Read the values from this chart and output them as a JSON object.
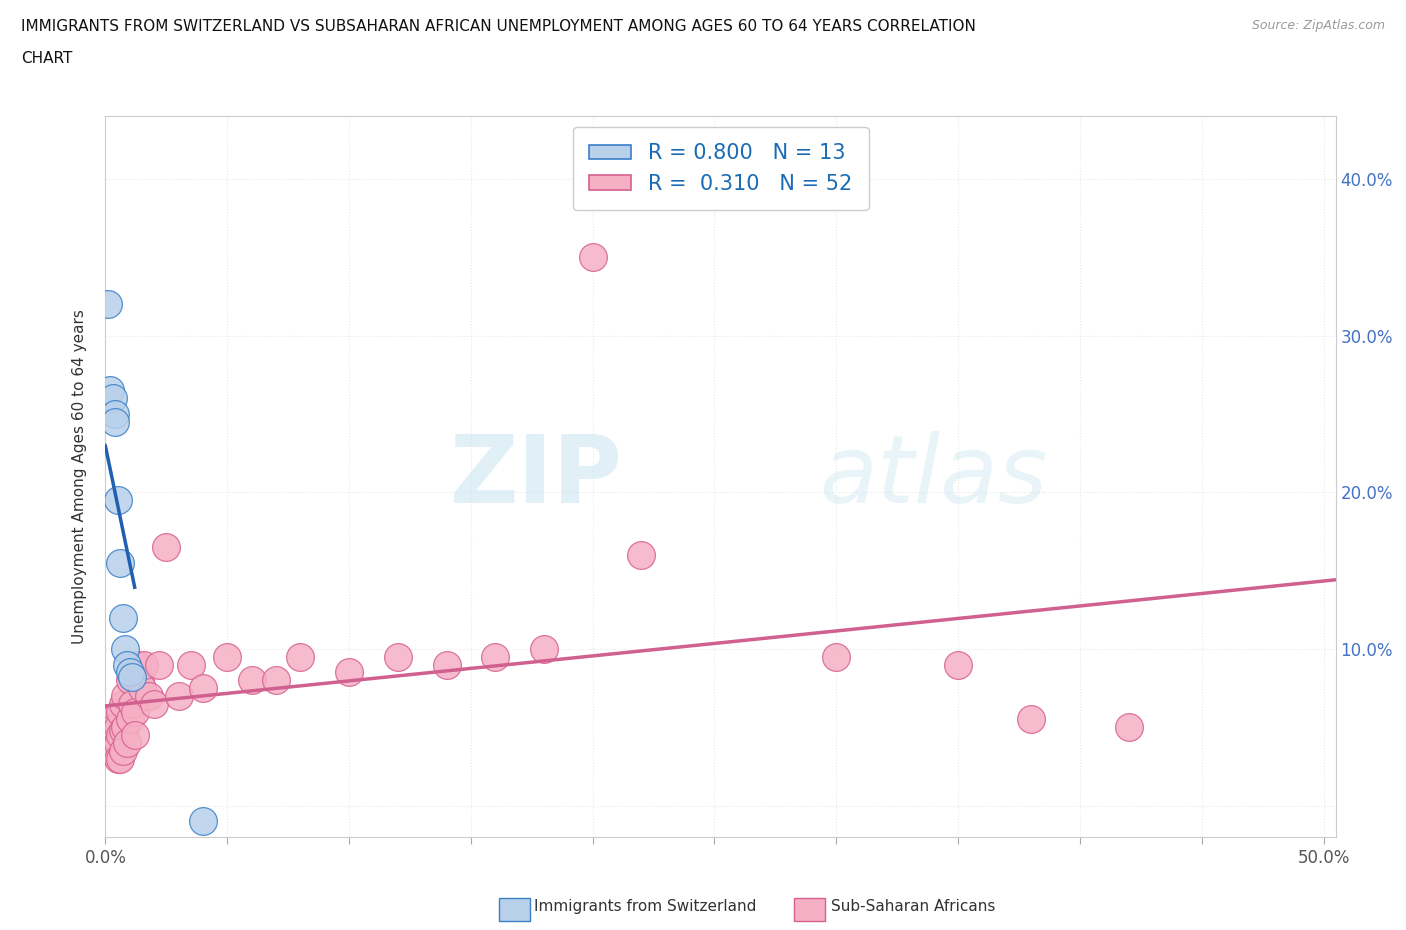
{
  "title_line1": "IMMIGRANTS FROM SWITZERLAND VS SUBSAHARAN AFRICAN UNEMPLOYMENT AMONG AGES 60 TO 64 YEARS CORRELATION",
  "title_line2": "CHART",
  "source": "Source: ZipAtlas.com",
  "ylabel": "Unemployment Among Ages 60 to 64 years",
  "xlim": [
    0.0,
    0.505
  ],
  "ylim": [
    -0.02,
    0.44
  ],
  "xticks": [
    0.0,
    0.05,
    0.1,
    0.15,
    0.2,
    0.25,
    0.3,
    0.35,
    0.4,
    0.45,
    0.5
  ],
  "xtick_labels": [
    "0.0%",
    "",
    "",
    "",
    "",
    "",
    "",
    "",
    "",
    "",
    "50.0%"
  ],
  "ytick_positions": [
    0.0,
    0.1,
    0.2,
    0.3,
    0.4
  ],
  "ytick_labels_right": [
    "",
    "10.0%",
    "20.0%",
    "30.0%",
    "40.0%"
  ],
  "swiss_color": "#b8d0ea",
  "swiss_edge_color": "#3a80c8",
  "swiss_line_color": "#2060b0",
  "swiss_R": 0.8,
  "swiss_N": 13,
  "subsaharan_color": "#f5b0c5",
  "subsaharan_edge_color": "#d86090",
  "subsaharan_line_color": "#d06090",
  "subsaharan_R": 0.31,
  "subsaharan_N": 52,
  "swiss_x": [
    0.001,
    0.002,
    0.003,
    0.004,
    0.004,
    0.005,
    0.006,
    0.007,
    0.008,
    0.009,
    0.01,
    0.011,
    0.04
  ],
  "swiss_y": [
    0.32,
    0.265,
    0.26,
    0.25,
    0.245,
    0.195,
    0.155,
    0.12,
    0.1,
    0.09,
    0.085,
    0.082,
    -0.01
  ],
  "subsaharan_x": [
    0.001,
    0.001,
    0.002,
    0.002,
    0.003,
    0.003,
    0.003,
    0.004,
    0.004,
    0.005,
    0.005,
    0.005,
    0.006,
    0.006,
    0.006,
    0.007,
    0.007,
    0.007,
    0.008,
    0.008,
    0.009,
    0.01,
    0.01,
    0.011,
    0.012,
    0.012,
    0.013,
    0.014,
    0.015,
    0.016,
    0.018,
    0.02,
    0.022,
    0.025,
    0.03,
    0.035,
    0.04,
    0.05,
    0.06,
    0.07,
    0.08,
    0.1,
    0.12,
    0.14,
    0.16,
    0.18,
    0.2,
    0.22,
    0.3,
    0.35,
    0.38,
    0.42
  ],
  "subsaharan_y": [
    0.05,
    0.04,
    0.045,
    0.035,
    0.055,
    0.04,
    0.035,
    0.05,
    0.035,
    0.05,
    0.04,
    0.03,
    0.06,
    0.045,
    0.03,
    0.065,
    0.048,
    0.035,
    0.07,
    0.05,
    0.04,
    0.08,
    0.055,
    0.065,
    0.06,
    0.045,
    0.09,
    0.08,
    0.075,
    0.09,
    0.07,
    0.065,
    0.09,
    0.165,
    0.07,
    0.09,
    0.075,
    0.095,
    0.08,
    0.08,
    0.095,
    0.085,
    0.095,
    0.09,
    0.095,
    0.1,
    0.35,
    0.16,
    0.095,
    0.09,
    0.055,
    0.05
  ],
  "watermark_zip": "ZIP",
  "watermark_atlas": "atlas",
  "background_color": "#ffffff",
  "grid_color": "#e8e8e8",
  "grid_style_h": "dotted",
  "grid_style_v": "dotted",
  "right_tick_color": "#4472c4",
  "legend_label_color": "#1a6bb5",
  "bottom_legend_swiss": "Immigrants from Switzerland",
  "bottom_legend_sub": "Sub-Saharan Africans"
}
